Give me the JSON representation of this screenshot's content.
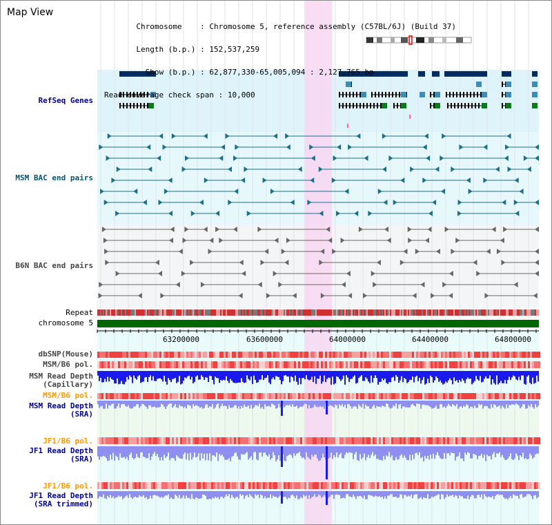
{
  "app": {
    "title": "Map View"
  },
  "info": {
    "chromosome_key": "Chromosome",
    "chromosome_val": "Chromosome 5, reference assembly (C57BL/6J) (Build 37)",
    "length_key": "Length (b.p.)",
    "length_val": "152,537,259",
    "show_key": "Show (b.p.)",
    "show_val": "62,877,330-65,005,094 : 2,127,765 bp",
    "span_key": "Read coverage check span",
    "span_val": "10,000"
  },
  "tracks": {
    "refseq": "RefSeq Genes",
    "msm_bac": "MSM BAC end pairs",
    "b6n_bac": "B6N BAC end pairs",
    "repeat": "Repeat",
    "chromosome": "chromosome 5",
    "dbsnp": "dbSNP(Mouse)",
    "msm_pol": "MSM/B6 pol.",
    "msm_depth_cap_1": "MSM Read Depth",
    "msm_depth_cap_2": "(Capillary)",
    "msm_pol2": "MSM/B6 pol.",
    "msm_depth_sra_1": "MSM Read Depth",
    "msm_depth_sra_2": "(SRA)",
    "jf1_pol": "JF1/B6 pol.",
    "jf1_depth_1": "JF1 Read Depth",
    "jf1_depth_2": "(SRA)",
    "jf1_pol2": "JF1/B6 pol.",
    "jf1_trim_1": "JF1 Read Depth",
    "jf1_trim_2": "(SRA trimmed)"
  },
  "axis": {
    "ticks": [
      "63200000",
      "63600000",
      "64000000",
      "64400000",
      "64800000"
    ]
  },
  "colors": {
    "refseq_bg": "#dff3fb",
    "highlight": "#f7d7f2",
    "gene_dark": "#002c5f",
    "chrom_green": "#006600",
    "depth_blue": "#1a1aee",
    "depth_light": "#8f8ff2"
  }
}
